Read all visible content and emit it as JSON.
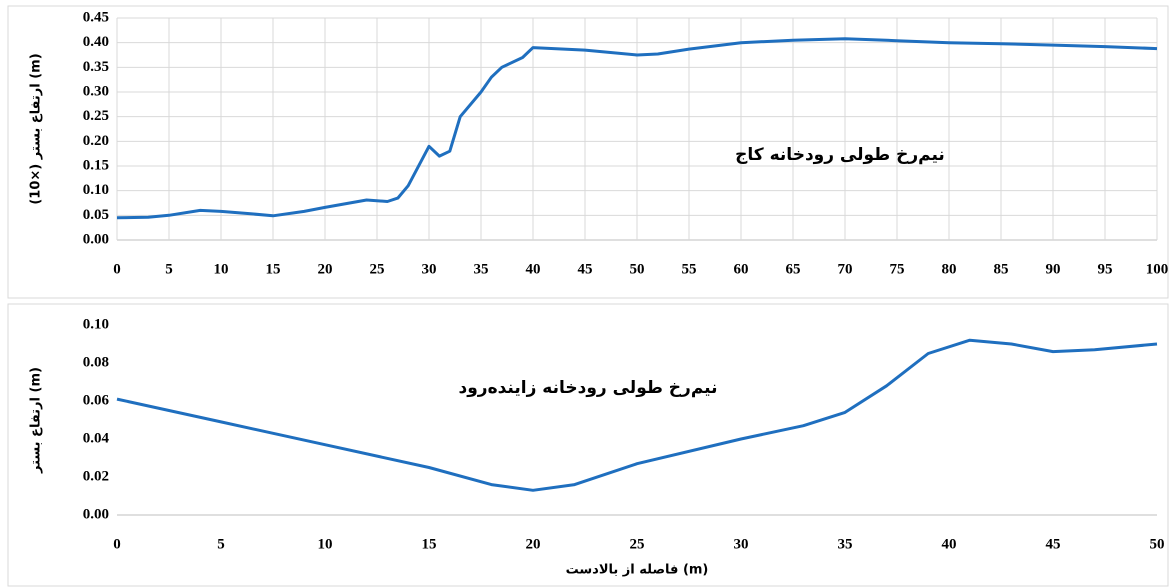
{
  "chart_data": [
    {
      "type": "line",
      "annotation": "نیم‌رخ طولی رودخانه کاج",
      "y_label": "ارتفاع بستر (×10) (m)",
      "x": [
        0,
        3,
        5,
        8,
        10,
        13,
        15,
        18,
        20,
        24,
        26,
        27,
        28,
        30,
        31,
        32,
        33,
        35,
        36,
        37,
        39,
        40,
        45,
        50,
        52,
        55,
        60,
        65,
        70,
        75,
        80,
        85,
        90,
        95,
        100
      ],
      "values": [
        0.045,
        0.046,
        0.05,
        0.06,
        0.058,
        0.053,
        0.049,
        0.058,
        0.066,
        0.081,
        0.078,
        0.085,
        0.11,
        0.19,
        0.17,
        0.18,
        0.25,
        0.3,
        0.33,
        0.35,
        0.37,
        0.39,
        0.385,
        0.375,
        0.377,
        0.387,
        0.4,
        0.405,
        0.408,
        0.404,
        0.4,
        0.398,
        0.395,
        0.392,
        0.388
      ],
      "color": "#1f6fbf",
      "grid": true,
      "xlim": [
        0,
        100
      ],
      "xticks": [
        0,
        5,
        10,
        15,
        20,
        25,
        30,
        35,
        40,
        45,
        50,
        55,
        60,
        65,
        70,
        75,
        80,
        85,
        90,
        95,
        100
      ],
      "ylim": [
        0,
        0.45
      ],
      "yticks": [
        {
          "value": 0,
          "label": "0.00"
        },
        {
          "value": 0.05,
          "label": "0.05"
        },
        {
          "value": 0.1,
          "label": "0.10"
        },
        {
          "value": 0.15,
          "label": "0.15"
        },
        {
          "value": 0.2,
          "label": "0.20"
        },
        {
          "value": 0.25,
          "label": "0.25"
        },
        {
          "value": 0.3,
          "label": "0.30"
        },
        {
          "value": 0.35,
          "label": "0.35"
        },
        {
          "value": 0.4,
          "label": "0.40"
        },
        {
          "value": 0.45,
          "label": "0.45"
        }
      ]
    },
    {
      "type": "line",
      "annotation": "نیم‌رخ طولی رودخانه زاینده‌رود",
      "y_label": "ارتفاع بستر (m)",
      "x_label": "فاصله از بالادست (m)",
      "x": [
        0,
        5,
        10,
        15,
        18,
        20,
        22,
        25,
        30,
        33,
        35,
        37,
        39,
        41,
        43,
        45,
        47,
        50
      ],
      "values": [
        0.061,
        0.049,
        0.037,
        0.025,
        0.016,
        0.013,
        0.016,
        0.027,
        0.04,
        0.047,
        0.054,
        0.068,
        0.085,
        0.092,
        0.09,
        0.086,
        0.087,
        0.09
      ],
      "color": "#1f6fbf",
      "grid": false,
      "xlim": [
        0,
        50
      ],
      "xticks": [
        0,
        5,
        10,
        15,
        20,
        25,
        30,
        35,
        40,
        45,
        50
      ],
      "ylim": [
        0,
        0.1
      ],
      "yticks": [
        {
          "value": 0,
          "label": "0.00"
        },
        {
          "value": 0.02,
          "label": "0.02"
        },
        {
          "value": 0.04,
          "label": "0.04"
        },
        {
          "value": 0.06,
          "label": "0.06"
        },
        {
          "value": 0.08,
          "label": "0.08"
        },
        {
          "value": 0.1,
          "label": "0.10"
        }
      ]
    }
  ]
}
